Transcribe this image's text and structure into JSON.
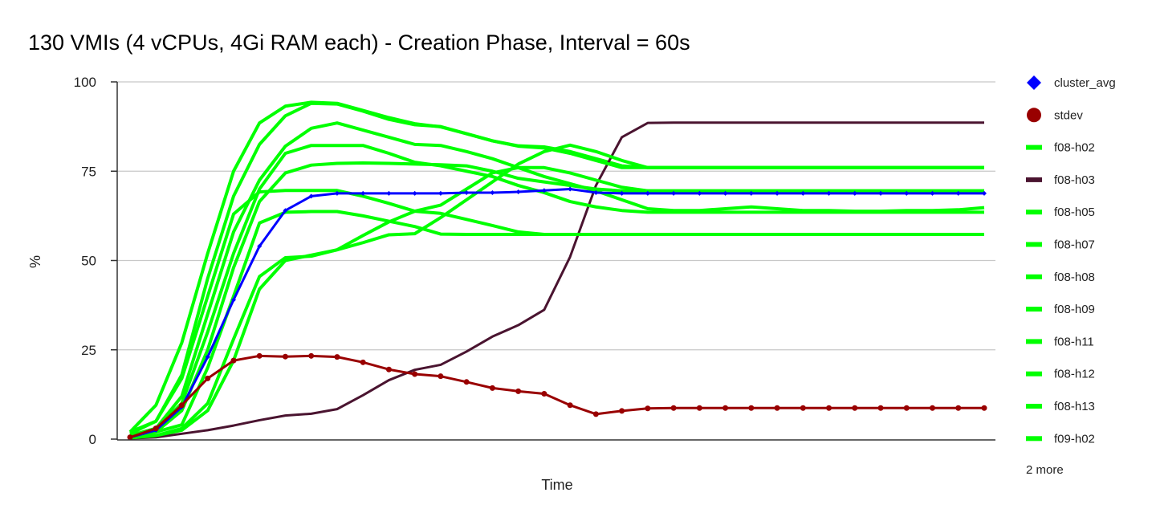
{
  "chart_data": {
    "type": "line",
    "title": "130 VMIs (4 vCPUs, 4Gi RAM each) - Creation Phase, Interval = 60s",
    "xlabel": "Time",
    "ylabel": "%",
    "ylim": [
      0,
      100
    ],
    "yticks": [
      "0",
      "25",
      "50",
      "75",
      "100"
    ],
    "grid": true,
    "legend_position": "right",
    "legend_more": "2 more",
    "series": [
      {
        "name": "cluster_avg",
        "color": "#0000ff",
        "marker": "diamond",
        "values": [
          0.5,
          2.5,
          9,
          23,
          39,
          54,
          64,
          68,
          68.8,
          68.8,
          68.8,
          68.8,
          68.8,
          69,
          69,
          69.2,
          69.6,
          70,
          69,
          68.8,
          68.8,
          68.8,
          68.8,
          68.8,
          68.8,
          68.8,
          68.8,
          68.8,
          68.8,
          68.8,
          68.8,
          68.8,
          68.8,
          68.8
        ]
      },
      {
        "name": "stdev",
        "color": "#990000",
        "marker": "circle",
        "values": [
          0.5,
          3,
          9.5,
          17,
          22,
          23.3,
          23.1,
          23.3,
          23,
          21.5,
          19.5,
          18.2,
          17.6,
          16,
          14.3,
          13.4,
          12.7,
          9.5,
          7,
          7.9,
          8.6,
          8.7,
          8.7,
          8.7,
          8.7,
          8.7,
          8.7,
          8.7,
          8.7,
          8.7,
          8.7,
          8.7,
          8.7,
          8.7
        ]
      },
      {
        "name": "f08-h02",
        "color": "#00ff00",
        "values": [
          2,
          9.5,
          27,
          52,
          75,
          88.5,
          93.2,
          94.3,
          94,
          92,
          90,
          88.3,
          87.4,
          85.5,
          83.5,
          82.1,
          81.8,
          80.5,
          78.5,
          76.5,
          76,
          76,
          76,
          76,
          76,
          76,
          76,
          76,
          76,
          76,
          76,
          76,
          76,
          76
        ]
      },
      {
        "name": "f08-h03",
        "color": "#4a1430",
        "values": [
          0.2,
          0.5,
          1.5,
          2.5,
          3.8,
          5.3,
          6.6,
          7.1,
          8.4,
          12.3,
          16.5,
          19.4,
          20.8,
          24.5,
          28.7,
          31.9,
          36.2,
          51,
          71,
          84.5,
          88.5,
          88.6,
          88.6,
          88.6,
          88.6,
          88.6,
          88.6,
          88.6,
          88.6,
          88.6,
          88.6,
          88.6,
          88.6,
          88.6
        ]
      },
      {
        "name": "f08-h05",
        "color": "#00ff00",
        "values": [
          1.5,
          5,
          18,
          45,
          68,
          82.5,
          90.5,
          94,
          93.8,
          91.8,
          89.5,
          88,
          87.5,
          85.5,
          83.5,
          82,
          81.5,
          80,
          78,
          76,
          76,
          76,
          76,
          76,
          76,
          76,
          76,
          76,
          76,
          76,
          76,
          76,
          76,
          76
        ]
      },
      {
        "name": "f08-h07",
        "color": "#00ff00",
        "values": [
          1,
          3,
          12,
          35,
          58,
          72.5,
          82,
          87,
          88.5,
          86.5,
          84.5,
          82.5,
          82.2,
          80.5,
          78.5,
          76,
          73.5,
          71.5,
          69.5,
          67,
          64.5,
          64,
          64,
          64.5,
          65,
          64.5,
          64,
          64,
          63.8,
          63.8,
          64,
          64,
          64.2,
          64.8
        ]
      },
      {
        "name": "f08-h08",
        "color": "#00ff00",
        "values": [
          1,
          3,
          10,
          30,
          52,
          70,
          80,
          82.2,
          82.2,
          82.2,
          80,
          77.5,
          76.5,
          75,
          73.5,
          71,
          69,
          66.5,
          65,
          64,
          63.5,
          63.5,
          63.5,
          63.5,
          63.5,
          63.5,
          63.5,
          63.5,
          63.5,
          63.5,
          63.5,
          63.5,
          63.5,
          63.5
        ]
      },
      {
        "name": "f08-h09",
        "color": "#00ff00",
        "values": [
          2,
          5,
          17,
          40,
          63,
          69.2,
          69.6,
          69.6,
          69.6,
          68,
          66,
          63.8,
          63.2,
          61.5,
          59.8,
          58,
          57.3,
          57.3,
          57.3,
          57.3,
          57.3,
          57.3,
          57.3,
          57.3,
          57.3,
          57.3,
          57.3,
          57.3,
          57.3,
          57.3,
          57.3,
          57.3,
          57.3,
          57.3
        ]
      },
      {
        "name": "f08-h11",
        "color": "#00ff00",
        "values": [
          1,
          2,
          8,
          25,
          48,
          66.5,
          74.5,
          76.7,
          77.2,
          77.3,
          77.2,
          77,
          76.8,
          76.5,
          75,
          73,
          72,
          71,
          70,
          69.5,
          69.5,
          69.5,
          69.5,
          69.5,
          69.5,
          69.5,
          69.5,
          69.5,
          69.5,
          69.5,
          69.5,
          69.5,
          69.5,
          69.5
        ]
      },
      {
        "name": "f08-h12",
        "color": "#00ff00",
        "values": [
          0.5,
          2,
          4,
          20,
          40,
          60.5,
          63.5,
          63.7,
          63.7,
          62.5,
          61,
          59.5,
          57.4,
          57.3,
          57.3,
          57.3,
          57.3,
          57.3,
          57.3,
          57.3,
          57.3,
          57.3,
          57.3,
          57.3,
          57.3,
          57.3,
          57.3,
          57.3,
          57.3,
          57.3,
          57.3,
          57.3,
          57.3,
          57.3
        ]
      },
      {
        "name": "f08-h13",
        "color": "#00ff00",
        "values": [
          0.5,
          1,
          3,
          10,
          28,
          45.5,
          50.8,
          51.2,
          53,
          55,
          57.2,
          57.5,
          62,
          67,
          72,
          77,
          80.5,
          82.3,
          80.5,
          78,
          76,
          76,
          76,
          76,
          76,
          76,
          76,
          76,
          76,
          76,
          76,
          76,
          76,
          76
        ]
      },
      {
        "name": "f09-h02",
        "color": "#00ff00",
        "values": [
          0.3,
          1,
          2.5,
          8,
          22,
          42,
          50,
          51.5,
          53,
          57,
          60.8,
          63.8,
          65.5,
          70,
          74.5,
          76,
          76,
          74.5,
          72.5,
          70.5,
          69.5,
          69.5,
          69.5,
          69.5,
          69.5,
          69.5,
          69.5,
          69.5,
          69.5,
          69.5,
          69.5,
          69.5,
          69.5,
          69.5
        ]
      }
    ]
  }
}
